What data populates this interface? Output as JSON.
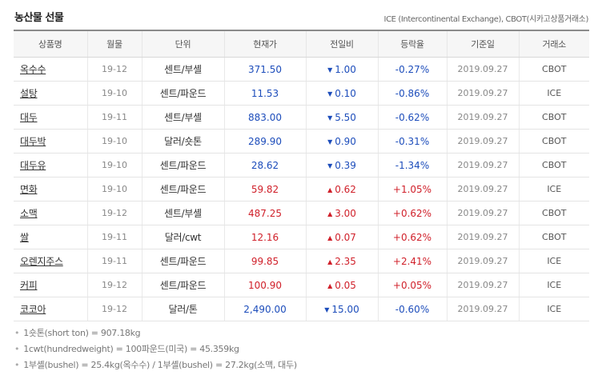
{
  "header": {
    "title": "농산물 선물",
    "source": "ICE (Intercontinental Exchange), CBOT(시카고상품거래소)"
  },
  "columns": [
    "상품명",
    "월물",
    "단위",
    "현재가",
    "전일비",
    "등락율",
    "기준일",
    "거래소"
  ],
  "rows": [
    {
      "name": "옥수수",
      "month": "19-12",
      "unit": "센트/부셸",
      "price": "371.50",
      "dir": "down",
      "change": "1.00",
      "rate": "-0.27%",
      "date": "2019.09.27",
      "exchange": "CBOT"
    },
    {
      "name": "설탕",
      "month": "19-10",
      "unit": "센트/파운드",
      "price": "11.53",
      "dir": "down",
      "change": "0.10",
      "rate": "-0.86%",
      "date": "2019.09.27",
      "exchange": "ICE"
    },
    {
      "name": "대두",
      "month": "19-11",
      "unit": "센트/부셸",
      "price": "883.00",
      "dir": "down",
      "change": "5.50",
      "rate": "-0.62%",
      "date": "2019.09.27",
      "exchange": "CBOT"
    },
    {
      "name": "대두박",
      "month": "19-10",
      "unit": "달러/숏톤",
      "price": "289.90",
      "dir": "down",
      "change": "0.90",
      "rate": "-0.31%",
      "date": "2019.09.27",
      "exchange": "CBOT"
    },
    {
      "name": "대두유",
      "month": "19-10",
      "unit": "센트/파운드",
      "price": "28.62",
      "dir": "down",
      "change": "0.39",
      "rate": "-1.34%",
      "date": "2019.09.27",
      "exchange": "CBOT"
    },
    {
      "name": "면화",
      "month": "19-10",
      "unit": "센트/파운드",
      "price": "59.82",
      "dir": "up",
      "change": "0.62",
      "rate": "+1.05%",
      "date": "2019.09.27",
      "exchange": "ICE"
    },
    {
      "name": "소맥",
      "month": "19-12",
      "unit": "센트/부셸",
      "price": "487.25",
      "dir": "up",
      "change": "3.00",
      "rate": "+0.62%",
      "date": "2019.09.27",
      "exchange": "CBOT"
    },
    {
      "name": "쌀",
      "month": "19-11",
      "unit": "달러/cwt",
      "price": "12.16",
      "dir": "up",
      "change": "0.07",
      "rate": "+0.62%",
      "date": "2019.09.27",
      "exchange": "CBOT"
    },
    {
      "name": "오렌지주스",
      "month": "19-11",
      "unit": "센트/파운드",
      "price": "99.85",
      "dir": "up",
      "change": "2.35",
      "rate": "+2.41%",
      "date": "2019.09.27",
      "exchange": "ICE"
    },
    {
      "name": "커피",
      "month": "19-12",
      "unit": "센트/파운드",
      "price": "100.90",
      "dir": "up",
      "change": "0.05",
      "rate": "+0.05%",
      "date": "2019.09.27",
      "exchange": "ICE"
    },
    {
      "name": "코코아",
      "month": "19-12",
      "unit": "달러/톤",
      "price": "2,490.00",
      "dir": "down",
      "change": "15.00",
      "rate": "-0.60%",
      "date": "2019.09.27",
      "exchange": "ICE"
    }
  ],
  "notes": [
    "1숏톤(short ton) = 907.18kg",
    "1cwt(hundredweight) = 100파운드(미국) = 45.359kg",
    "1부셸(bushel) = 25.4kg(옥수수) / 1부셸(bushel) = 27.2kg(소맥, 대두)"
  ],
  "colors": {
    "up": "#d0202a",
    "down": "#1d4dbb"
  },
  "icons": {
    "up": "triangle-up-icon",
    "down": "triangle-down-icon"
  }
}
